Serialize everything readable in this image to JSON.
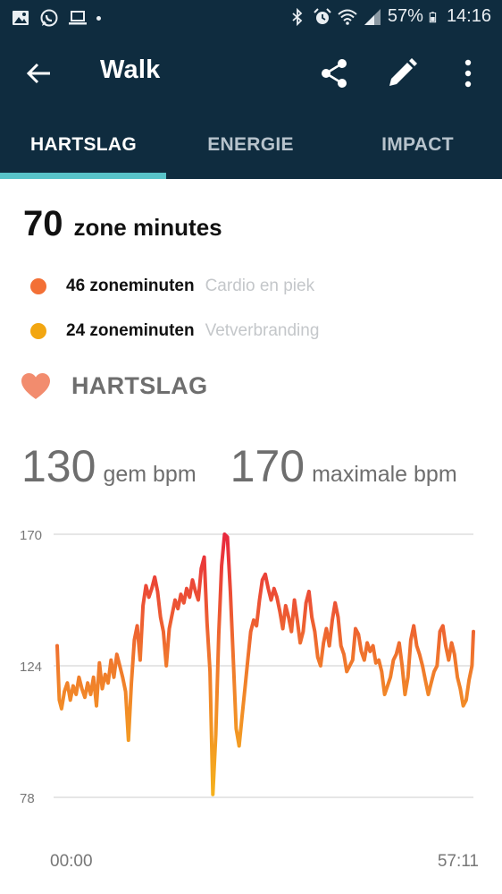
{
  "status_bar": {
    "battery": "57%",
    "time": "14:16",
    "icons_left": [
      "image-icon",
      "whatsapp-icon",
      "laptop-icon"
    ],
    "icons_right": [
      "bluetooth-icon",
      "alarm-icon",
      "wifi-icon",
      "signal-icon",
      "battery-icon"
    ]
  },
  "app_bar": {
    "title": "Walk"
  },
  "tabs": [
    {
      "label": "HARTSLAG",
      "active": true
    },
    {
      "label": "ENERGIE",
      "active": false
    },
    {
      "label": "IMPACT",
      "active": false
    }
  ],
  "zone_minutes": {
    "total": "70",
    "label": "zone minutes",
    "rows": [
      {
        "value": "46 zoneminuten",
        "category": "Cardio en piek",
        "color": "#f37036"
      },
      {
        "value": "24 zoneminuten",
        "category": "Vetverbranding",
        "color": "#f2a611"
      }
    ]
  },
  "heart_rate": {
    "title": "HARTSLAG",
    "avg_value": "130",
    "avg_label": "gem bpm",
    "max_value": "170",
    "max_label": "maximale bpm"
  },
  "colors": {
    "header": "#0f2c3f",
    "tab_indicator": "#58c3c9",
    "heart": "#f28c6e"
  },
  "chart_data": {
    "type": "line",
    "x_start_label": "00:00",
    "x_end_label": "57:11",
    "x_range_minutes": [
      0,
      57.2
    ],
    "ylim": [
      78,
      170
    ],
    "y_ticks": [
      "170",
      "124",
      "78"
    ],
    "grid": true,
    "gradient": [
      "#e8283d",
      "#f07a2c",
      "#f5b21c"
    ],
    "x": [
      0,
      0.3,
      0.6,
      1.0,
      1.4,
      1.8,
      2.2,
      2.6,
      3.0,
      3.4,
      3.8,
      4.2,
      4.6,
      5.0,
      5.4,
      5.8,
      6.2,
      6.6,
      7.0,
      7.4,
      7.8,
      8.2,
      8.6,
      9.0,
      9.4,
      9.8,
      10.2,
      10.6,
      11.0,
      11.4,
      11.8,
      12.2,
      12.6,
      13.0,
      13.4,
      13.8,
      14.2,
      14.6,
      15.0,
      15.4,
      15.8,
      16.2,
      16.6,
      17.0,
      17.4,
      17.8,
      18.2,
      18.6,
      19.0,
      19.4,
      19.8,
      20.2,
      20.6,
      21.0,
      21.4,
      21.8,
      22.2,
      22.6,
      23.0,
      23.4,
      23.8,
      24.2,
      24.6,
      25.0,
      25.4,
      25.8,
      26.2,
      26.6,
      27.0,
      27.4,
      27.8,
      28.2,
      28.6,
      29.0,
      29.4,
      29.8,
      30.2,
      30.6,
      31.0,
      31.4,
      31.8,
      32.2,
      32.6,
      33.0,
      33.4,
      33.8,
      34.2,
      34.6,
      35.0,
      35.4,
      35.8,
      36.2,
      36.6,
      37.0,
      37.4,
      37.8,
      38.2,
      38.6,
      39.0,
      39.4,
      39.8,
      40.2,
      40.6,
      41.0,
      41.4,
      41.8,
      42.2,
      42.6,
      43.0,
      43.4,
      43.8,
      44.2,
      44.6,
      45.0,
      45.4,
      45.8,
      46.2,
      46.6,
      47.0,
      47.4,
      47.8,
      48.2,
      48.6,
      49.0,
      49.4,
      49.8,
      50.2,
      50.6,
      51.0,
      51.4,
      51.8,
      52.2,
      52.6,
      53.0,
      53.4,
      53.8,
      54.2,
      54.6,
      55.0,
      55.4,
      55.8,
      56.2,
      56.6,
      57.0,
      57.2
    ],
    "y": [
      131,
      112,
      109,
      115,
      118,
      112,
      117,
      114,
      120,
      116,
      113,
      118,
      114,
      120,
      110,
      125,
      116,
      121,
      118,
      126,
      120,
      128,
      124,
      120,
      115,
      98,
      118,
      133,
      138,
      126,
      145,
      152,
      148,
      151,
      155,
      150,
      141,
      136,
      124,
      137,
      142,
      147,
      144,
      149,
      146,
      151,
      148,
      154,
      150,
      147,
      158,
      162,
      139,
      122,
      79,
      100,
      135,
      159,
      170,
      169,
      150,
      126,
      102,
      96,
      106,
      116,
      126,
      136,
      140,
      138,
      147,
      154,
      156,
      151,
      147,
      151,
      148,
      143,
      137,
      145,
      141,
      136,
      147,
      140,
      132,
      136,
      146,
      150,
      141,
      136,
      127,
      124,
      132,
      137,
      131,
      140,
      146,
      141,
      131,
      128,
      122,
      124,
      126,
      137,
      135,
      129,
      126,
      132,
      129,
      131,
      125,
      126,
      122,
      114,
      117,
      120,
      126,
      128,
      132,
      124,
      114,
      120,
      133,
      138,
      131,
      128,
      124,
      119,
      114,
      118,
      122,
      124,
      136,
      138,
      131,
      126,
      132,
      128,
      120,
      116,
      110,
      112,
      119,
      124,
      136
    ]
  }
}
